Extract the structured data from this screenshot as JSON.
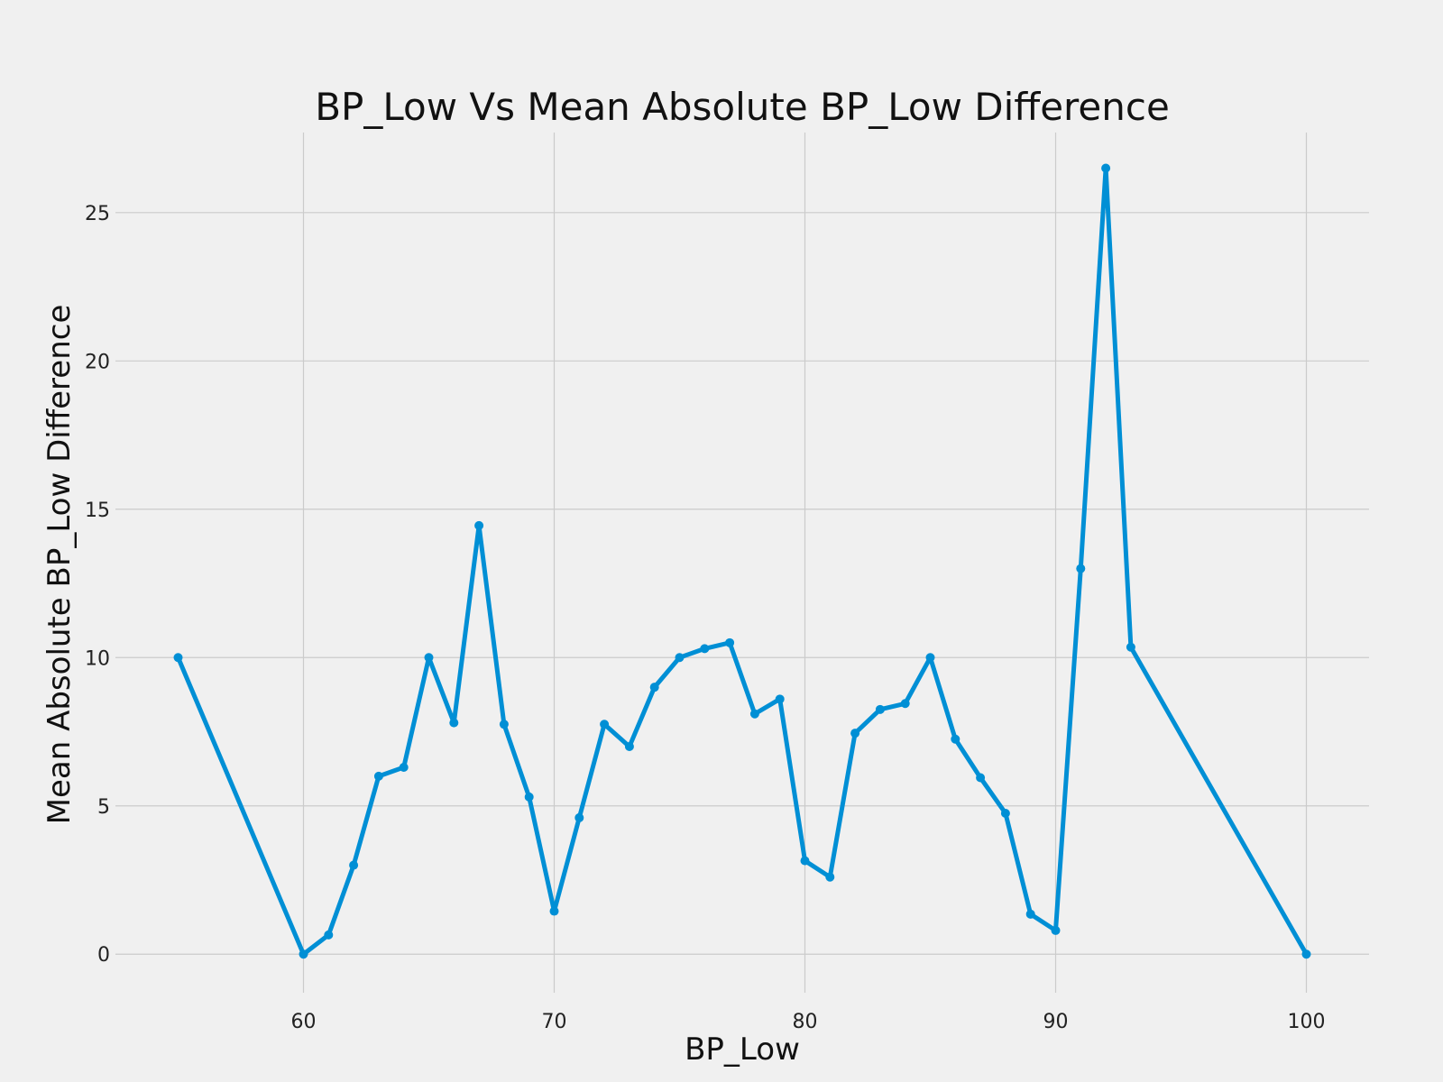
{
  "chart_data": {
    "type": "line",
    "title": "BP_Low Vs Mean Absolute BP_Low Difference",
    "xlabel": "BP_Low",
    "ylabel": "Mean Absolute BP_Low Difference",
    "xlim": [
      52.5,
      102.5
    ],
    "ylim": [
      -1.3,
      27.7
    ],
    "x_ticks": [
      60,
      70,
      80,
      90,
      100
    ],
    "y_ticks": [
      0,
      5,
      10,
      15,
      20,
      25
    ],
    "grid": true,
    "series": [
      {
        "color": "#008fd5",
        "x": [
          55,
          60,
          61,
          62,
          63,
          64,
          65,
          66,
          67,
          68,
          69,
          70,
          71,
          72,
          73,
          74,
          75,
          76,
          77,
          78,
          79,
          80,
          81,
          82,
          83,
          84,
          85,
          86,
          87,
          88,
          89,
          90,
          91,
          92,
          93,
          100
        ],
        "y": [
          10.0,
          0.0,
          0.65,
          3.0,
          6.0,
          6.3,
          10.0,
          7.8,
          14.45,
          7.75,
          5.3,
          1.45,
          4.6,
          7.75,
          7.0,
          9.0,
          10.0,
          10.3,
          10.5,
          8.1,
          8.6,
          3.15,
          2.6,
          7.45,
          8.25,
          8.45,
          10.0,
          7.25,
          5.95,
          4.75,
          1.35,
          0.8,
          13.0,
          26.5,
          10.35,
          0.0
        ]
      }
    ]
  }
}
